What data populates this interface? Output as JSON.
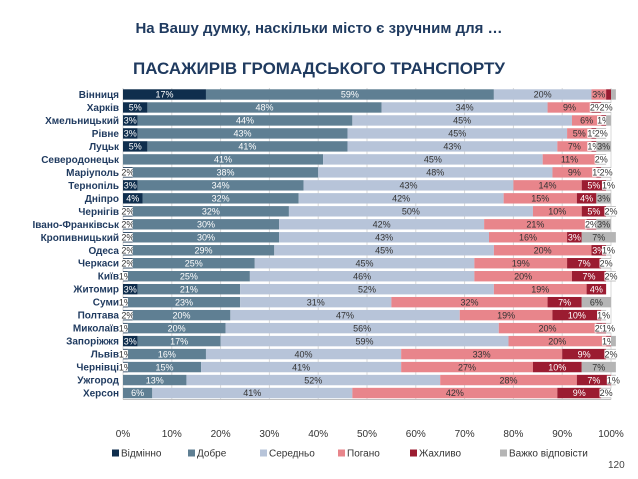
{
  "title": "На Вашу думку, наскільки місто є зручним для …",
  "subtitle": "ПАСАЖИРІВ ГРОМАДСЬКОГО ТРАНСПОРТУ",
  "page_number": "120",
  "colors": {
    "Відмінно": "#0f2e4d",
    "Добре": "#5f7f93",
    "Середньо": "#b7c4d9",
    "Погано": "#e8858b",
    "Жахливо": "#9b1c31",
    "Важко відповісти": "#b5b5b5",
    "title": "#1f3a5f"
  },
  "chart_data": {
    "type": "bar",
    "orientation": "horizontal",
    "stacked": true,
    "percent": true,
    "xlim": [
      0,
      100
    ],
    "xticks": [
      "0%",
      "10%",
      "20%",
      "30%",
      "40%",
      "50%",
      "60%",
      "70%",
      "80%",
      "90%",
      "100%"
    ],
    "grid": true,
    "legend_position": "bottom",
    "categories": [
      "Вінниця",
      "Харків",
      "Хмельницький",
      "Рівне",
      "Луцьк",
      "Северодонецьк",
      "Маріуполь",
      "Тернопіль",
      "Дніпро",
      "Чернігів",
      "Івано-Франківськ",
      "Кропивницький",
      "Одеса",
      "Черкаси",
      "Київ",
      "Житомир",
      "Суми",
      "Полтава",
      "Миколаїв",
      "Запоріжжя",
      "Львів",
      "Чернівці",
      "Ужгород",
      "Херсон"
    ],
    "series": [
      {
        "name": "Відмінно",
        "values": [
          17,
          5,
          3,
          3,
          5,
          0,
          2,
          3,
          4,
          2,
          2,
          2,
          2,
          2,
          1,
          3,
          1,
          2,
          1,
          3,
          1,
          1,
          0,
          0
        ]
      },
      {
        "name": "Добре",
        "values": [
          59,
          48,
          44,
          43,
          41,
          41,
          38,
          34,
          32,
          32,
          30,
          30,
          29,
          25,
          25,
          21,
          23,
          20,
          20,
          17,
          16,
          15,
          13,
          6
        ]
      },
      {
        "name": "Середньо",
        "values": [
          20,
          34,
          45,
          45,
          43,
          45,
          48,
          43,
          42,
          50,
          42,
          43,
          45,
          45,
          46,
          52,
          31,
          47,
          56,
          59,
          40,
          41,
          52,
          41
        ]
      },
      {
        "name": "Погано",
        "values": [
          3,
          9,
          6,
          5,
          7,
          11,
          9,
          14,
          15,
          10,
          21,
          16,
          20,
          19,
          20,
          19,
          32,
          19,
          20,
          20,
          33,
          27,
          28,
          42
        ]
      },
      {
        "name": "Жахливо",
        "values": [
          1,
          2,
          1,
          1,
          1,
          0,
          1,
          5,
          4,
          5,
          2,
          3,
          3,
          7,
          7,
          4,
          7,
          10,
          2,
          1,
          9,
          10,
          7,
          9
        ]
      },
      {
        "name": "Важко відповісти",
        "values": [
          1,
          2,
          1,
          2,
          3,
          2,
          2,
          1,
          3,
          2,
          3,
          7,
          1,
          2,
          2,
          0,
          6,
          1,
          1,
          1,
          2,
          7,
          1,
          2
        ]
      }
    ],
    "labels": [
      [
        "17%",
        "59%",
        "20%",
        "3%",
        "",
        ""
      ],
      [
        "5%",
        "48%",
        "34%",
        "9%",
        "2%",
        "2%"
      ],
      [
        "3%",
        "44%",
        "45%",
        "6%",
        "1%",
        ""
      ],
      [
        "3%",
        "43%",
        "45%",
        "5%",
        "1%",
        "2%"
      ],
      [
        "5%",
        "41%",
        "43%",
        "7%",
        "1%",
        "3%"
      ],
      [
        "",
        "41%",
        "45%",
        "11%",
        "",
        "2%"
      ],
      [
        "2%",
        "38%",
        "48%",
        "9%",
        "1%",
        "2%"
      ],
      [
        "3%",
        "34%",
        "43%",
        "14%",
        "5%",
        "1%"
      ],
      [
        "4%",
        "32%",
        "42%",
        "15%",
        "4%",
        "3%"
      ],
      [
        "2%",
        "32%",
        "50%",
        "10%",
        "5%",
        "2%"
      ],
      [
        "2%",
        "30%",
        "42%",
        "21%",
        "2%",
        "3%"
      ],
      [
        "2%",
        "30%",
        "43%",
        "16%",
        "3%",
        "7%"
      ],
      [
        "2%",
        "29%",
        "45%",
        "20%",
        "3%",
        "1%"
      ],
      [
        "2%",
        "25%",
        "45%",
        "19%",
        "7%",
        "2%"
      ],
      [
        "1%",
        "25%",
        "46%",
        "20%",
        "7%",
        "2%"
      ],
      [
        "3%",
        "21%",
        "52%",
        "19%",
        "4%",
        ""
      ],
      [
        "1%",
        "23%",
        "31%",
        "32%",
        "7%",
        "6%"
      ],
      [
        "2%",
        "20%",
        "47%",
        "19%",
        "10%",
        "1%"
      ],
      [
        "1%",
        "20%",
        "56%",
        "20%",
        "2%",
        "1%"
      ],
      [
        "3%",
        "17%",
        "59%",
        "20%",
        "1%",
        ""
      ],
      [
        "1%",
        "16%",
        "40%",
        "33%",
        "9%",
        "2%"
      ],
      [
        "1%",
        "15%",
        "41%",
        "27%",
        "10%",
        "7%"
      ],
      [
        "",
        "13%",
        "52%",
        "28%",
        "7%",
        "1%"
      ],
      [
        "",
        "6%",
        "41%",
        "42%",
        "9%",
        "2%"
      ]
    ]
  }
}
